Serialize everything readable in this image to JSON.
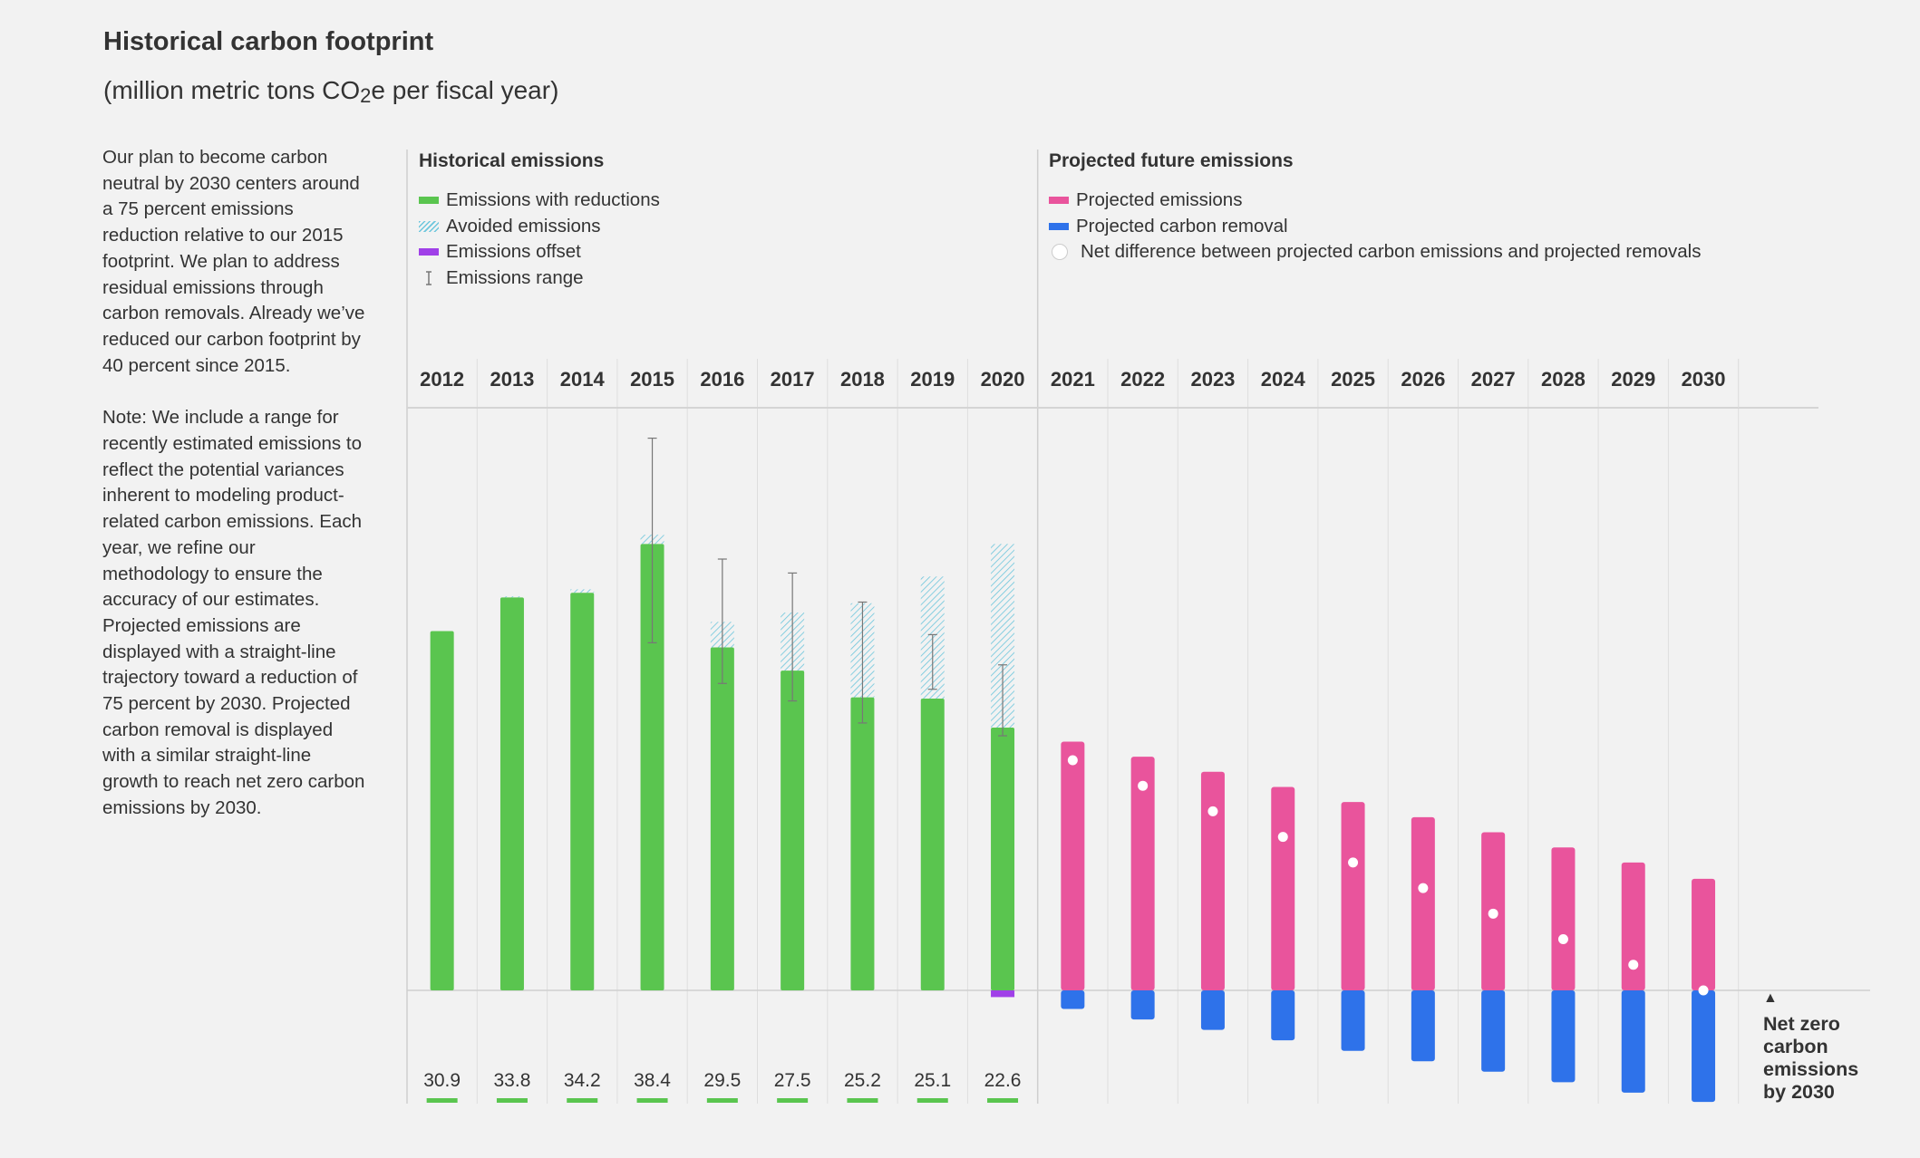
{
  "title": "Historical carbon footprint",
  "subtitle_main": "(million metric tons CO",
  "subtitle_sub": "2",
  "subtitle_end": "e per fiscal year)",
  "description": {
    "p1": "Our plan to become carbon neutral by 2030 centers around a 75 percent emissions reduction relative to our 2015 footprint. We plan to address residual emissions through carbon removals. Already we’ve reduced our carbon footprint by 40 percent since 2015.",
    "p2": "Note: We include a range for recently estimated emissions to reflect the potential variances inherent to modeling product-related carbon emissions. Each year, we refine our methodology to ensure the accuracy of our estimates. Projected emissions are displayed with a straight-line trajectory toward a reduction of 75 percent by 2030. Projected carbon removal is displayed with a similar straight-line growth to reach net zero carbon emissions by 2030."
  },
  "legend": {
    "historical_title": "Historical emissions",
    "historical_items": [
      "Emissions with reductions",
      "Avoided emissions",
      "Emissions offset",
      "Emissions range"
    ],
    "projected_title": "Projected future emissions",
    "projected_items": [
      "Projected emissions",
      "Projected carbon removal",
      "Net difference between projected carbon emissions and projected removals"
    ]
  },
  "net_zero_label": "Net zero carbon emissions by 2030",
  "net_zero_arrow": "▲",
  "colors": {
    "emissions": "#5ac54f",
    "avoided": "#6cc6dc",
    "offset": "#a040e8",
    "projected": "#e9549c",
    "removal": "#2e72ea",
    "net_dot": "#ffffff"
  },
  "chart_data": {
    "type": "bar",
    "title": "Historical carbon footprint",
    "ylabel": "million metric tons CO2e per fiscal year",
    "ylim": [
      -7,
      33
    ],
    "categories": [
      "2012",
      "2013",
      "2014",
      "2015",
      "2016",
      "2017",
      "2018",
      "2019",
      "2020",
      "2021",
      "2022",
      "2023",
      "2024",
      "2025",
      "2026",
      "2027",
      "2028",
      "2029",
      "2030"
    ],
    "historical": {
      "years": [
        "2012",
        "2013",
        "2014",
        "2015",
        "2016",
        "2017",
        "2018",
        "2019",
        "2020"
      ],
      "emissions_with_reductions": [
        30.9,
        33.8,
        34.2,
        38.4,
        29.5,
        27.5,
        25.2,
        25.1,
        22.6
      ],
      "avoided_emissions": [
        0,
        0.1,
        0.3,
        0.8,
        2.2,
        5.0,
        8.1,
        10.5,
        15.8
      ],
      "emissions_offset": [
        0,
        0,
        0,
        0,
        0,
        0,
        0,
        0,
        0.5
      ],
      "range_low": [
        null,
        null,
        null,
        29.9,
        26.4,
        24.9,
        23.0,
        25.9,
        21.9
      ],
      "range_high": [
        null,
        null,
        null,
        47.5,
        37.1,
        35.9,
        33.4,
        30.6,
        28.0
      ],
      "labels": [
        "30.9",
        "33.8",
        "34.2",
        "38.4",
        "29.5",
        "27.5",
        "25.2",
        "25.1",
        "22.6"
      ]
    },
    "projected": {
      "years": [
        "2021",
        "2022",
        "2023",
        "2024",
        "2025",
        "2026",
        "2027",
        "2028",
        "2029",
        "2030"
      ],
      "projected_emissions": [
        21.4,
        20.1,
        18.8,
        17.5,
        16.2,
        14.9,
        13.6,
        12.3,
        11.0,
        9.6
      ],
      "projected_carbon_removal": [
        -1.6,
        -2.5,
        -3.4,
        -4.3,
        -5.2,
        -6.1,
        -7.0,
        -7.9,
        -8.8,
        -9.6
      ],
      "net_difference": [
        19.8,
        17.6,
        15.4,
        13.2,
        11.0,
        8.8,
        6.6,
        4.4,
        2.2,
        0.0
      ]
    }
  }
}
